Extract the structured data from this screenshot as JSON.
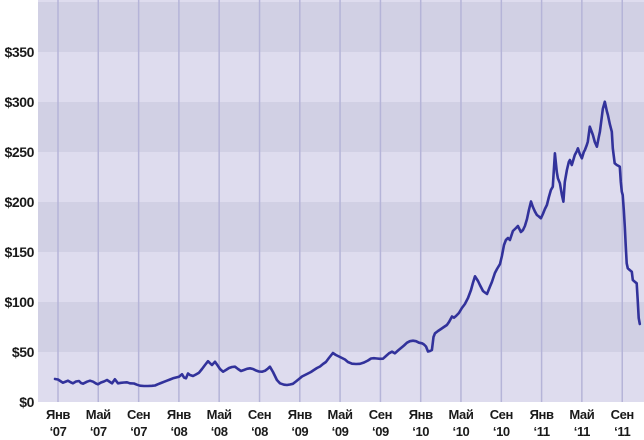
{
  "chart_data": {
    "type": "line",
    "title": "",
    "legend": null,
    "grid": "vertical-gridlines-and-horizontal-bands",
    "colors": {
      "line": "#32329b",
      "band_light": "#dedcee",
      "band_dark": "#d1d0e4",
      "gridline": "#b5b4d8",
      "text": "#1a1a1a",
      "background": "#ffffff"
    },
    "y_axis": {
      "tick_values": [
        0,
        50,
        100,
        150,
        200,
        250,
        300,
        350
      ],
      "tick_labels": [
        "$0",
        "$50",
        "$100",
        "$150",
        "$200",
        "$250",
        "$300",
        "$350"
      ],
      "ylim": [
        0,
        402
      ],
      "band_step": 50
    },
    "x_axis": {
      "ticks": [
        {
          "t": 2007.0,
          "month": "Янв",
          "year": "‘07"
        },
        {
          "t": 2007.333,
          "month": "Май",
          "year": "‘07"
        },
        {
          "t": 2007.667,
          "month": "Сен",
          "year": "‘07"
        },
        {
          "t": 2008.0,
          "month": "Янв",
          "year": "‘08"
        },
        {
          "t": 2008.333,
          "month": "Май",
          "year": "‘08"
        },
        {
          "t": 2008.667,
          "month": "Сен",
          "year": "‘08"
        },
        {
          "t": 2009.0,
          "month": "Янв",
          "year": "‘09"
        },
        {
          "t": 2009.333,
          "month": "Май",
          "year": "‘09"
        },
        {
          "t": 2009.667,
          "month": "Сен",
          "year": "‘09"
        },
        {
          "t": 2010.0,
          "month": "Янв",
          "year": "‘10"
        },
        {
          "t": 2010.333,
          "month": "Май",
          "year": "‘10"
        },
        {
          "t": 2010.667,
          "month": "Сен",
          "year": "‘10"
        },
        {
          "t": 2011.0,
          "month": "Янв",
          "year": "‘11"
        },
        {
          "t": 2011.333,
          "month": "Май",
          "year": "‘11"
        },
        {
          "t": 2011.667,
          "month": "Сен",
          "year": "‘11"
        }
      ]
    },
    "series": [
      {
        "name": "stock-price-usd",
        "points": [
          [
            2006.975,
            23
          ],
          [
            2007.0,
            22.5
          ],
          [
            2007.025,
            20.5
          ],
          [
            2007.041,
            19.3
          ],
          [
            2007.066,
            20.5
          ],
          [
            2007.083,
            21.3
          ],
          [
            2007.108,
            19.5
          ],
          [
            2007.124,
            18.7
          ],
          [
            2007.149,
            20.5
          ],
          [
            2007.174,
            21
          ],
          [
            2007.19,
            19
          ],
          [
            2007.207,
            18.3
          ],
          [
            2007.24,
            20.3
          ],
          [
            2007.265,
            21.3
          ],
          [
            2007.29,
            20.3
          ],
          [
            2007.314,
            18.5
          ],
          [
            2007.331,
            17.7
          ],
          [
            2007.356,
            19.5
          ],
          [
            2007.38,
            20.5
          ],
          [
            2007.405,
            22
          ],
          [
            2007.43,
            20
          ],
          [
            2007.447,
            18.7
          ],
          [
            2007.471,
            22.7
          ],
          [
            2007.496,
            18.7
          ],
          [
            2007.521,
            19.2
          ],
          [
            2007.546,
            19.5
          ],
          [
            2007.571,
            19.7
          ],
          [
            2007.595,
            18.7
          ],
          [
            2007.629,
            18.5
          ],
          [
            2007.653,
            17.3
          ],
          [
            2007.678,
            16.3
          ],
          [
            2007.711,
            16
          ],
          [
            2007.744,
            16
          ],
          [
            2007.777,
            16.2
          ],
          [
            2007.802,
            16.5
          ],
          [
            2007.827,
            17.8
          ],
          [
            2007.852,
            19
          ],
          [
            2007.877,
            20.2
          ],
          [
            2007.901,
            21.3
          ],
          [
            2007.926,
            22.5
          ],
          [
            2007.951,
            23.7
          ],
          [
            2007.976,
            24.5
          ],
          [
            2008.001,
            25.3
          ],
          [
            2008.026,
            27.8
          ],
          [
            2008.042,
            24.5
          ],
          [
            2008.059,
            23.7
          ],
          [
            2008.075,
            28.5
          ],
          [
            2008.092,
            27
          ],
          [
            2008.117,
            26
          ],
          [
            2008.141,
            27.5
          ],
          [
            2008.166,
            29.3
          ],
          [
            2008.191,
            33
          ],
          [
            2008.216,
            37
          ],
          [
            2008.241,
            40.8
          ],
          [
            2008.257,
            38.8
          ],
          [
            2008.274,
            37
          ],
          [
            2008.299,
            40.3
          ],
          [
            2008.323,
            36
          ],
          [
            2008.34,
            33
          ],
          [
            2008.365,
            30.3
          ],
          [
            2008.389,
            32
          ],
          [
            2008.414,
            34
          ],
          [
            2008.439,
            35
          ],
          [
            2008.464,
            35.3
          ],
          [
            2008.489,
            33
          ],
          [
            2008.514,
            31
          ],
          [
            2008.538,
            32
          ],
          [
            2008.563,
            33.2
          ],
          [
            2008.588,
            33.7
          ],
          [
            2008.613,
            33
          ],
          [
            2008.638,
            31.5
          ],
          [
            2008.662,
            30.5
          ],
          [
            2008.687,
            30.3
          ],
          [
            2008.712,
            31.2
          ],
          [
            2008.737,
            33.5
          ],
          [
            2008.753,
            35.3
          ],
          [
            2008.778,
            30
          ],
          [
            2008.811,
            22
          ],
          [
            2008.836,
            18.7
          ],
          [
            2008.869,
            17.3
          ],
          [
            2008.894,
            17
          ],
          [
            2008.919,
            17.5
          ],
          [
            2008.943,
            18.2
          ],
          [
            2008.968,
            20.5
          ],
          [
            2008.993,
            23
          ],
          [
            2009.018,
            25.5
          ],
          [
            2009.043,
            27
          ],
          [
            2009.068,
            28.5
          ],
          [
            2009.092,
            30
          ],
          [
            2009.117,
            32
          ],
          [
            2009.142,
            34
          ],
          [
            2009.167,
            35.5
          ],
          [
            2009.192,
            38
          ],
          [
            2009.216,
            40
          ],
          [
            2009.241,
            44
          ],
          [
            2009.274,
            49
          ],
          [
            2009.299,
            47
          ],
          [
            2009.324,
            45.5
          ],
          [
            2009.349,
            44
          ],
          [
            2009.374,
            42.5
          ],
          [
            2009.398,
            40
          ],
          [
            2009.432,
            38.3
          ],
          [
            2009.465,
            38
          ],
          [
            2009.498,
            38.2
          ],
          [
            2009.531,
            39.5
          ],
          [
            2009.564,
            41.5
          ],
          [
            2009.589,
            43.5
          ],
          [
            2009.613,
            43.8
          ],
          [
            2009.638,
            43.5
          ],
          [
            2009.663,
            43.2
          ],
          [
            2009.688,
            43.3
          ],
          [
            2009.713,
            46
          ],
          [
            2009.738,
            48.7
          ],
          [
            2009.763,
            50.3
          ],
          [
            2009.787,
            48.7
          ],
          [
            2009.812,
            51.5
          ],
          [
            2009.837,
            54
          ],
          [
            2009.862,
            56.5
          ],
          [
            2009.887,
            59.3
          ],
          [
            2009.911,
            60.8
          ],
          [
            2009.936,
            61.3
          ],
          [
            2009.961,
            60.8
          ],
          [
            2009.986,
            59.3
          ],
          [
            2010.011,
            58.7
          ],
          [
            2010.027,
            57.5
          ],
          [
            2010.044,
            55.5
          ],
          [
            2010.06,
            50.5
          ],
          [
            2010.077,
            51
          ],
          [
            2010.093,
            52
          ],
          [
            2010.106,
            65
          ],
          [
            2010.118,
            68.7
          ],
          [
            2010.143,
            71
          ],
          [
            2010.168,
            73
          ],
          [
            2010.192,
            75
          ],
          [
            2010.217,
            77
          ],
          [
            2010.234,
            80
          ],
          [
            2010.259,
            85.5
          ],
          [
            2010.275,
            84.3
          ],
          [
            2010.292,
            86
          ],
          [
            2010.316,
            89
          ],
          [
            2010.341,
            94
          ],
          [
            2010.366,
            98
          ],
          [
            2010.391,
            104
          ],
          [
            2010.416,
            112
          ],
          [
            2010.432,
            119
          ],
          [
            2010.449,
            125.7
          ],
          [
            2010.474,
            121
          ],
          [
            2010.49,
            117
          ],
          [
            2010.515,
            111
          ],
          [
            2010.531,
            109.5
          ],
          [
            2010.548,
            108
          ],
          [
            2010.573,
            115.5
          ],
          [
            2010.589,
            120
          ],
          [
            2010.614,
            129
          ],
          [
            2010.631,
            133
          ],
          [
            2010.656,
            138
          ],
          [
            2010.672,
            146
          ],
          [
            2010.689,
            157
          ],
          [
            2010.705,
            162
          ],
          [
            2010.722,
            164
          ],
          [
            2010.738,
            162
          ],
          [
            2010.763,
            171
          ],
          [
            2010.788,
            174
          ],
          [
            2010.804,
            176
          ],
          [
            2010.829,
            170
          ],
          [
            2010.846,
            172
          ],
          [
            2010.862,
            176
          ],
          [
            2010.879,
            183
          ],
          [
            2010.895,
            192
          ],
          [
            2010.912,
            200.5
          ],
          [
            2010.928,
            195
          ],
          [
            2010.945,
            190.3
          ],
          [
            2010.961,
            187
          ],
          [
            2010.978,
            185.5
          ],
          [
            2010.994,
            183.7
          ],
          [
            2011.011,
            188
          ],
          [
            2011.027,
            193
          ],
          [
            2011.044,
            197
          ],
          [
            2011.06,
            205
          ],
          [
            2011.077,
            212
          ],
          [
            2011.093,
            215.3
          ],
          [
            2011.11,
            248.7
          ],
          [
            2011.126,
            230
          ],
          [
            2011.135,
            223.7
          ],
          [
            2011.151,
            218.7
          ],
          [
            2011.168,
            207
          ],
          [
            2011.18,
            200.3
          ],
          [
            2011.192,
            220
          ],
          [
            2011.209,
            232
          ],
          [
            2011.225,
            240
          ],
          [
            2011.234,
            242
          ],
          [
            2011.25,
            237
          ],
          [
            2011.267,
            244
          ],
          [
            2011.275,
            247
          ],
          [
            2011.292,
            251
          ],
          [
            2011.3,
            253.7
          ],
          [
            2011.316,
            248
          ],
          [
            2011.333,
            243.7
          ],
          [
            2011.349,
            250
          ],
          [
            2011.358,
            252
          ],
          [
            2011.374,
            257
          ],
          [
            2011.382,
            260.3
          ],
          [
            2011.399,
            275.3
          ],
          [
            2011.415,
            270
          ],
          [
            2011.424,
            267
          ],
          [
            2011.44,
            260
          ],
          [
            2011.457,
            255.3
          ],
          [
            2011.473,
            265
          ],
          [
            2011.482,
            270.3
          ],
          [
            2011.498,
            285
          ],
          [
            2011.506,
            293
          ],
          [
            2011.523,
            300.3
          ],
          [
            2011.539,
            291
          ],
          [
            2011.548,
            287
          ],
          [
            2011.564,
            278
          ],
          [
            2011.581,
            270.3
          ],
          [
            2011.589,
            253.7
          ],
          [
            2011.605,
            238.7
          ],
          [
            2011.622,
            237
          ],
          [
            2011.638,
            236
          ],
          [
            2011.647,
            235.3
          ],
          [
            2011.655,
            220
          ],
          [
            2011.663,
            210.3
          ],
          [
            2011.671,
            207
          ],
          [
            2011.68,
            192
          ],
          [
            2011.688,
            175.3
          ],
          [
            2011.696,
            157
          ],
          [
            2011.704,
            138.7
          ],
          [
            2011.713,
            133.7
          ],
          [
            2011.729,
            132
          ],
          [
            2011.746,
            130.3
          ],
          [
            2011.754,
            122
          ],
          [
            2011.77,
            120.3
          ],
          [
            2011.787,
            118.7
          ],
          [
            2011.795,
            102
          ],
          [
            2011.803,
            84
          ],
          [
            2011.812,
            78
          ]
        ]
      }
    ]
  }
}
